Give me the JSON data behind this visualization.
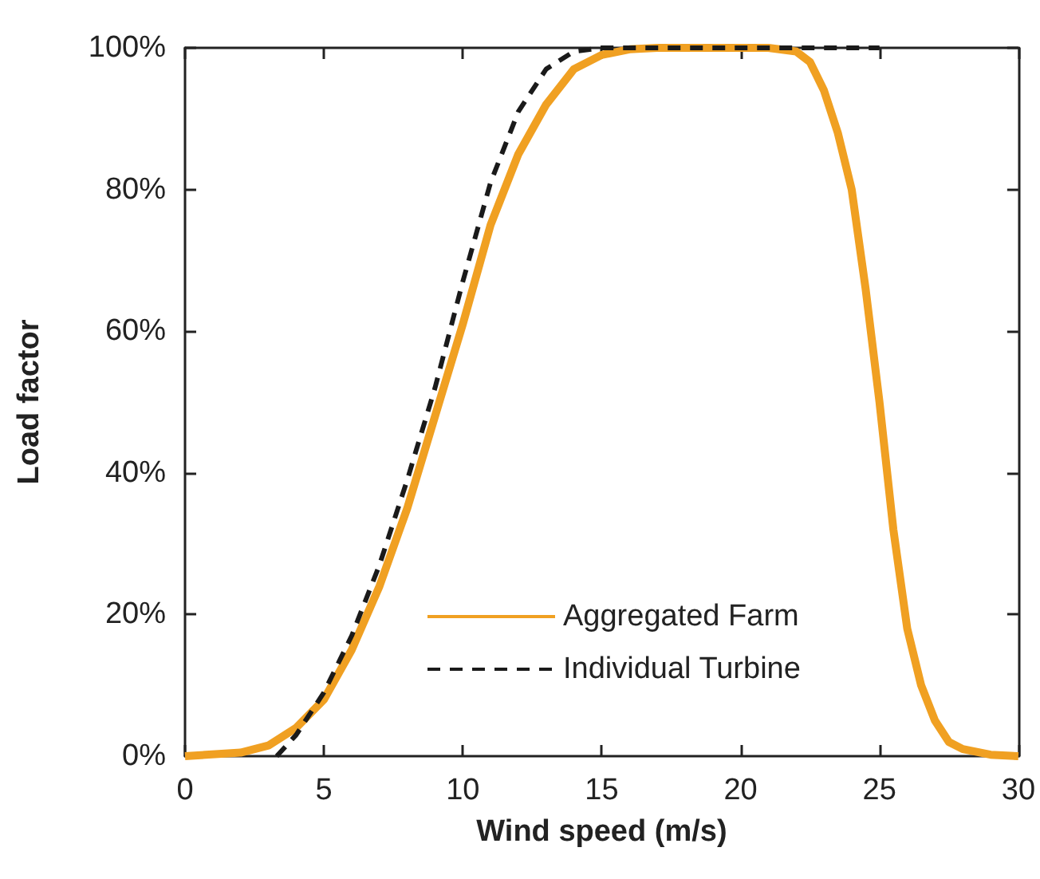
{
  "chart_data": {
    "type": "line",
    "xlabel": "Wind speed (m/s)",
    "ylabel": "Load factor",
    "xlim": [
      0,
      30
    ],
    "xticks": [
      0,
      5,
      10,
      15,
      20,
      25,
      30
    ],
    "ylim": [
      0,
      100
    ],
    "yticks": [
      {
        "value": 0,
        "label": "0%"
      },
      {
        "value": 20,
        "label": "20%"
      },
      {
        "value": 40,
        "label": "40%"
      },
      {
        "value": 60,
        "label": "60%"
      },
      {
        "value": 80,
        "label": "80%"
      },
      {
        "value": 100,
        "label": "100%"
      }
    ],
    "grid": false,
    "legend": "bottom",
    "marker": "none",
    "series": [
      {
        "name": "Aggregated Farm",
        "color": "#f0a022",
        "line_style": "solid",
        "x": [
          0,
          2,
          3,
          4,
          5,
          6,
          7,
          8,
          9,
          10,
          11,
          12,
          13,
          14,
          15,
          16,
          17,
          18,
          19,
          20,
          21,
          22,
          22.5,
          23,
          23.5,
          24,
          24.5,
          25,
          25.5,
          26,
          26.5,
          27,
          27.5,
          28,
          29,
          30
        ],
        "values": [
          0,
          0.5,
          1.5,
          4,
          8,
          15,
          24,
          35,
          48,
          61,
          75,
          85,
          92,
          97,
          99,
          99.8,
          100,
          100,
          100,
          100,
          100,
          99.5,
          98,
          94,
          88,
          80,
          66,
          50,
          32,
          18,
          10,
          5,
          2,
          1,
          0.2,
          0
        ]
      },
      {
        "name": "Individual Turbine",
        "color": "#1a1a1a",
        "line_style": "dashed",
        "x": [
          3.3,
          4,
          5,
          6,
          7,
          8,
          9,
          10,
          11,
          12,
          13,
          14,
          15,
          16,
          17,
          18,
          19,
          20,
          21,
          22,
          23,
          24,
          25
        ],
        "values": [
          0,
          3,
          9,
          17,
          27,
          39,
          52,
          67,
          81,
          91,
          97,
          99.5,
          100,
          100,
          100,
          100,
          100,
          100,
          100,
          100,
          100,
          100,
          100
        ]
      }
    ]
  }
}
